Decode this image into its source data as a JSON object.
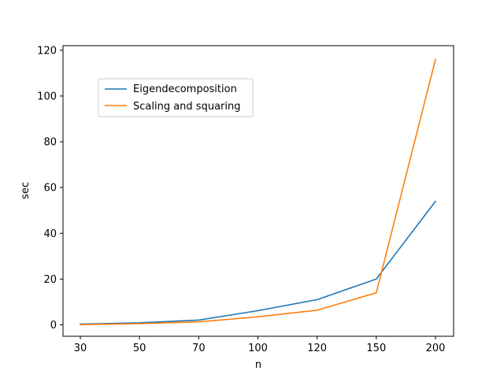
{
  "chart_data": {
    "type": "line",
    "title": "",
    "xlabel": "n",
    "ylabel": "sec",
    "categories": [
      "30",
      "50",
      "70",
      "100",
      "120",
      "150",
      "200"
    ],
    "ylim": [
      -5,
      122
    ],
    "yticks": [
      0,
      20,
      40,
      60,
      80,
      100,
      120
    ],
    "grid": false,
    "legend_position": "upper-left",
    "series": [
      {
        "name": "Eigendecomposition",
        "color": "#1f77b4",
        "values": [
          0.3,
          0.9,
          2.1,
          6.2,
          11.0,
          20.0,
          54.0
        ]
      },
      {
        "name": "Scaling and squaring",
        "color": "#ff7f0e",
        "values": [
          0.1,
          0.5,
          1.3,
          3.5,
          6.4,
          14.0,
          116.0
        ]
      }
    ]
  }
}
